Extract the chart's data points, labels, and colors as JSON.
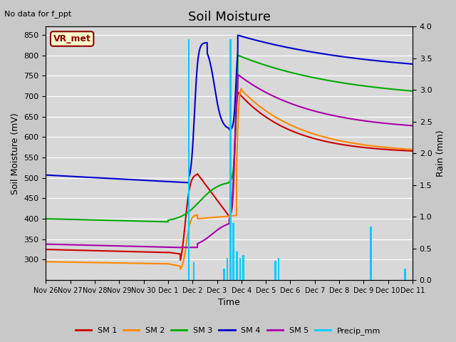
{
  "title": "Soil Moisture",
  "top_left_text": "No data for f_ppt",
  "xlabel": "Time",
  "ylabel_left": "Soil Moisture (mV)",
  "ylabel_right": "Rain (mm)",
  "ylim_left": [
    250,
    870
  ],
  "ylim_right": [
    0.0,
    4.0
  ],
  "yticks_left": [
    300,
    350,
    400,
    450,
    500,
    550,
    600,
    650,
    700,
    750,
    800,
    850
  ],
  "yticks_right": [
    0.0,
    0.5,
    1.0,
    1.5,
    2.0,
    2.5,
    3.0,
    3.5,
    4.0
  ],
  "xtick_labels": [
    "Nov 26",
    "Nov 27",
    "Nov 28",
    "Nov 29",
    "Nov 30",
    "Dec 1",
    "Dec 2",
    "Dec 3",
    "Dec 4",
    "Dec 5",
    "Dec 6",
    "Dec 7",
    "Dec 8",
    "Dec 9",
    "Dec 10",
    "Dec 11"
  ],
  "annotation_box": "VR_met",
  "bg_color": "#d8d8d8",
  "fig_facecolor": "#c8c8c8",
  "colors": {
    "SM1": "#cc0000",
    "SM2": "#ff8800",
    "SM3": "#00aa00",
    "SM4": "#0000cc",
    "SM5": "#aa00aa",
    "Precip": "#00ccff"
  },
  "legend_labels": [
    "SM 1",
    "SM 2",
    "SM 3",
    "SM 4",
    "SM 5",
    "Precip_mm"
  ],
  "precip_bars": {
    "x": [
      5.85,
      6.05,
      7.3,
      7.42,
      7.55,
      7.68,
      7.82,
      7.95,
      8.08,
      9.4,
      9.52,
      13.3,
      14.7
    ],
    "h": [
      3.8,
      0.28,
      0.18,
      0.35,
      3.8,
      0.9,
      0.45,
      0.35,
      0.4,
      0.3,
      0.35,
      0.85,
      0.18
    ]
  }
}
